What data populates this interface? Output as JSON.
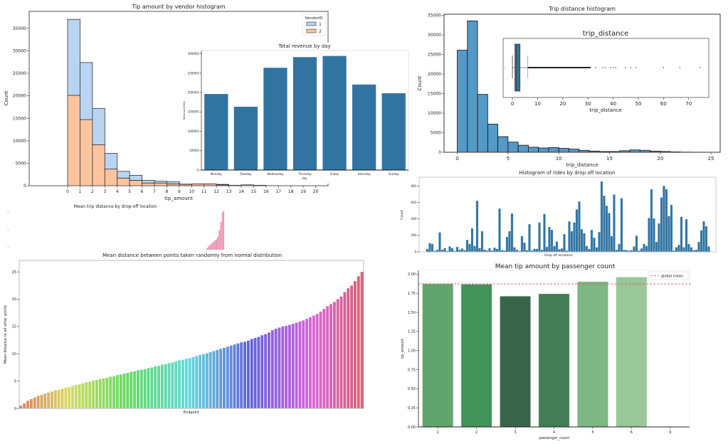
{
  "chart_data": [
    {
      "id": "tip_hist",
      "type": "bar",
      "title": "Tip amount by vendor histogram",
      "xlabel": "tip_amount",
      "ylabel": "Count",
      "xlim": [
        -3.1,
        21
      ],
      "ylim": [
        0,
        38770
      ],
      "xticks": [
        0,
        1,
        2,
        3,
        4,
        5,
        6,
        7,
        8,
        9,
        10,
        11,
        12,
        13,
        14,
        15,
        16,
        17,
        18,
        19,
        20
      ],
      "yticks": [
        0,
        5000,
        10000,
        15000,
        20000,
        25000,
        30000,
        35000
      ],
      "bin_edges": [
        0,
        1,
        2,
        3,
        4,
        5,
        6,
        7,
        8,
        9,
        10,
        11,
        12,
        13,
        14,
        15,
        16,
        17,
        18,
        19,
        20
      ],
      "stacked": true,
      "legend": {
        "title": "VendorID",
        "placement": "top-right"
      },
      "series": [
        {
          "name": "2",
          "color": "#fec49e",
          "values": [
            20100,
            14700,
            9100,
            3700,
            1700,
            1200,
            600,
            600,
            400,
            300,
            400,
            400,
            200,
            100,
            200,
            100,
            0,
            0,
            0,
            0
          ]
        },
        {
          "name": "1",
          "color": "#b8d4f2",
          "values": [
            16900,
            12700,
            8100,
            3500,
            1500,
            1100,
            600,
            400,
            500,
            200,
            300,
            300,
            100,
            0,
            0,
            0,
            0,
            0,
            0,
            0
          ]
        }
      ]
    },
    {
      "id": "revenue_day",
      "type": "bar",
      "title": "Total revenue by day",
      "xlabel": "day",
      "ylabel": "Revenue (USD)",
      "ylim": [
        0,
        308500
      ],
      "yticks": [
        0,
        50000,
        100000,
        150000,
        200000,
        250000,
        300000
      ],
      "categories": [
        "Monday",
        "Tuesday",
        "Wednesday",
        "Thursday",
        "Friday",
        "Saturday",
        "Sunday"
      ],
      "values": [
        196300,
        163400,
        264000,
        291500,
        294500,
        220700,
        198200
      ],
      "color": "#3274a1"
    },
    {
      "id": "trip_hist",
      "type": "bar",
      "title": "Trip distance histogram",
      "xlabel": "trip_distance",
      "ylabel": "Count",
      "xlim": [
        -1.3,
        25.9
      ],
      "ylim": [
        0,
        35300
      ],
      "xticks": [
        0,
        5,
        10,
        15,
        20,
        25
      ],
      "yticks": [
        0,
        5000,
        10000,
        15000,
        20000,
        25000,
        30000,
        35000
      ],
      "bin_width": 1,
      "values": [
        26100,
        33600,
        14800,
        7200,
        4000,
        2600,
        1800,
        1300,
        1100,
        1200,
        1000,
        800,
        500,
        300,
        200,
        200,
        400,
        600,
        500,
        300,
        200,
        100,
        50,
        30,
        20
      ],
      "color": "#5499c7"
    },
    {
      "id": "trip_box",
      "type": "box",
      "title": "trip_distance",
      "xlabel": "trip_distance",
      "xlim": [
        -3.7,
        78
      ],
      "xticks": [
        0,
        10,
        20,
        30,
        40,
        50,
        60,
        70
      ],
      "whisker_low": 0,
      "q1": 1,
      "median": 1.6,
      "q3": 3,
      "whisker_high": 6.1,
      "outliers": [
        6.5,
        8,
        10,
        12,
        14,
        16,
        18,
        20,
        22,
        24,
        26,
        28,
        30,
        31,
        33,
        36,
        37,
        39,
        40,
        41,
        45,
        47,
        49,
        60,
        66.5,
        74.5
      ],
      "color": "#3274a1"
    },
    {
      "id": "dropoff_hist",
      "type": "bar",
      "title": "Histogram of rides by drop off location",
      "xlabel": "Drop off locations",
      "ylabel": "Count",
      "ylim": [
        0,
        907
      ],
      "yticks": [
        0,
        200,
        400,
        600,
        800
      ],
      "values": [
        35,
        105,
        95,
        10,
        25,
        235,
        25,
        45,
        10,
        65,
        45,
        10,
        60,
        25,
        40,
        20,
        145,
        95,
        285,
        70,
        620,
        45,
        250,
        25,
        15,
        45,
        15,
        50,
        35,
        525,
        20,
        15,
        180,
        250,
        465,
        55,
        25,
        10,
        190,
        110,
        20,
        335,
        15,
        35,
        35,
        355,
        25,
        460,
        60,
        300,
        265,
        70,
        125,
        30,
        40,
        215,
        15,
        370,
        250,
        355,
        515,
        610,
        275,
        225,
        70,
        35,
        265,
        170,
        55,
        240,
        855,
        680,
        560,
        470,
        190,
        695,
        25,
        95,
        650,
        25,
        20,
        15,
        20,
        65,
        195,
        15,
        40,
        95,
        70,
        410,
        760,
        405,
        120,
        345,
        660,
        800,
        760,
        435,
        570,
        15,
        55,
        85,
        425,
        55,
        395,
        95,
        55,
        20,
        25,
        120,
        260,
        370,
        310,
        65
      ],
      "color": "#3274a1"
    },
    {
      "id": "mean_tip_passenger",
      "type": "bar",
      "title": "Mean tip amount by passenger count",
      "xlabel": "passenger_count",
      "ylabel": "tip_amount",
      "ylim": [
        0,
        2.05
      ],
      "yticks": [
        "0.00",
        "0.25",
        "0.50",
        "0.75",
        "1.00",
        "1.25",
        "1.50",
        "1.75",
        "2.00"
      ],
      "categories": [
        "1",
        "2",
        "3",
        "4",
        "5",
        "6",
        "9"
      ],
      "values": [
        1.876,
        1.87,
        1.714,
        1.745,
        1.904,
        1.963,
        0
      ],
      "colors": [
        "#5fa56d",
        "#43925a",
        "#38654a",
        "#427d55",
        "#7db783",
        "#99c798",
        "#cfe8cb"
      ],
      "reference_line": {
        "name": "global mean",
        "value": 1.873,
        "color": "#e8413a"
      },
      "legend": {
        "placement": "top-right"
      }
    },
    {
      "id": "mean_trip_dropoff",
      "type": "bar",
      "title": "Mean trip distance by drop-off location",
      "ylim": [
        14,
        26
      ],
      "values": [
        14.5,
        15,
        15.5,
        16,
        16.3,
        16.8,
        17.2,
        18,
        20,
        22.5,
        25.5
      ],
      "color": "#e88aa6"
    },
    {
      "id": "normal_dist",
      "type": "bar",
      "title": "Mean distance between points taken randomly from normal distribution",
      "xlabel": "Endpoint",
      "ylabel": "Mean distance to all other points",
      "ylim": [
        0,
        27.1
      ],
      "yticks": [
        0,
        5,
        10,
        15,
        20,
        25
      ],
      "palette": "husl",
      "values": [
        0.5,
        0.9,
        1.4,
        1.7,
        2.0,
        2.3,
        2.5,
        2.7,
        2.9,
        3.1,
        3.3,
        3.4,
        3.6,
        3.8,
        3.9,
        4.1,
        4.3,
        4.4,
        4.6,
        4.8,
        4.9,
        5.1,
        5.2,
        5.4,
        5.5,
        5.6,
        5.8,
        5.9,
        6.1,
        6.2,
        6.4,
        6.5,
        6.7,
        6.8,
        7.0,
        7.1,
        7.2,
        7.4,
        7.5,
        7.7,
        7.8,
        8.0,
        8.1,
        8.3,
        8.4,
        8.6,
        8.8,
        8.9,
        9.1,
        9.2,
        9.4,
        9.6,
        9.8,
        9.9,
        10.1,
        10.3,
        10.5,
        10.7,
        10.9,
        11.1,
        11.3,
        11.5,
        11.7,
        11.9,
        12.1,
        12.2,
        12.4,
        12.7,
        12.9,
        13.1,
        13.4,
        13.6,
        13.9,
        14.3,
        14.6,
        14.8,
        15.0,
        15.1,
        15.3,
        15.5,
        15.7,
        15.9,
        16.1,
        16.4,
        16.7,
        17.0,
        17.3,
        17.7,
        18.2,
        18.7,
        19.1,
        19.5,
        20.0,
        20.5,
        21.3,
        22.0,
        22.5,
        23.3,
        24.2,
        25.0
      ]
    }
  ]
}
